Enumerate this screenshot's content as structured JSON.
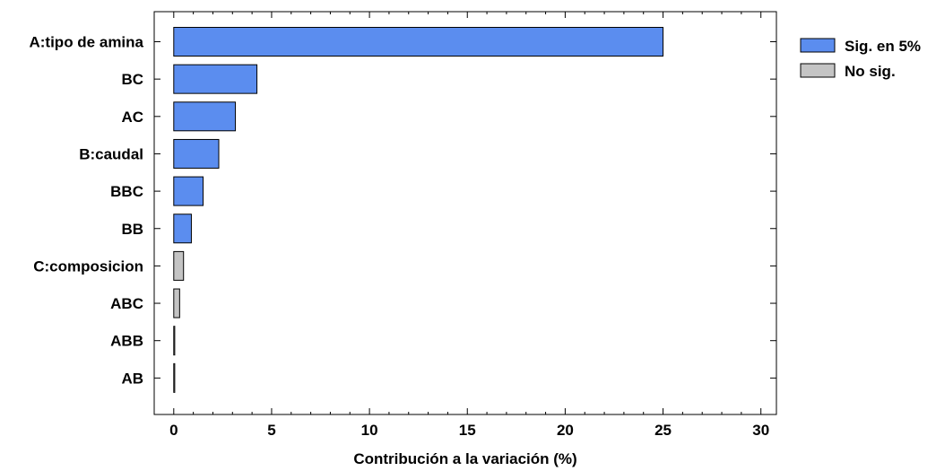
{
  "chart_data": {
    "type": "bar",
    "orientation": "horizontal",
    "categories": [
      "A:tipo de amina",
      "BC",
      "AC",
      "B:caudal",
      "BBC",
      "BB",
      "C:composicion",
      "ABC",
      "ABB",
      "AB"
    ],
    "values": [
      25.0,
      4.25,
      3.15,
      2.3,
      1.5,
      0.9,
      0.5,
      0.3,
      0.05,
      0.05
    ],
    "significance": [
      "sig",
      "sig",
      "sig",
      "sig",
      "sig",
      "sig",
      "nosig",
      "nosig",
      "nosig",
      "nosig"
    ],
    "xlabel": "Contribución a la variación (%)",
    "ylabel": "",
    "xlim": [
      -1,
      30.9
    ],
    "xticks": [
      0,
      5,
      10,
      15,
      20,
      25,
      30
    ],
    "grid": false,
    "legend_position": "right-top",
    "legend": [
      {
        "key": "sig",
        "label": "Sig. en 5%"
      },
      {
        "key": "nosig",
        "label": "No sig."
      }
    ],
    "colors": {
      "sig": "#5b8def",
      "nosig": "#c4c4c4",
      "stroke": "#000000"
    }
  }
}
